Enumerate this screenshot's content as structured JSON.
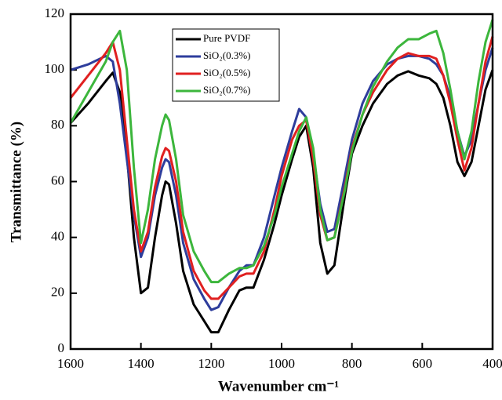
{
  "chart_data": {
    "type": "line",
    "xlabel": "Wavenumber cm⁻¹",
    "ylabel": "Transmittance (%)",
    "x": [
      1600,
      1550,
      1500,
      1480,
      1460,
      1440,
      1420,
      1400,
      1380,
      1360,
      1340,
      1330,
      1320,
      1300,
      1280,
      1250,
      1220,
      1200,
      1180,
      1150,
      1120,
      1100,
      1080,
      1050,
      1020,
      1000,
      970,
      950,
      930,
      910,
      890,
      870,
      850,
      820,
      800,
      770,
      740,
      700,
      670,
      640,
      610,
      580,
      560,
      540,
      520,
      500,
      480,
      460,
      440,
      420,
      400
    ],
    "series": [
      {
        "name": "Pure PVDF",
        "color": "#000000",
        "values": [
          81,
          88,
          96,
          99,
          92,
          70,
          40,
          20,
          22,
          40,
          55,
          60,
          59,
          45,
          28,
          16,
          10,
          6,
          6,
          14,
          21,
          22,
          22,
          32,
          45,
          55,
          68,
          76,
          80,
          65,
          38,
          27,
          30,
          55,
          70,
          80,
          88,
          95,
          98,
          99.5,
          98,
          97,
          95,
          90,
          80,
          67,
          62,
          67,
          80,
          93,
          100
        ]
      },
      {
        "name": "SiO₂(0.3%)",
        "color": "#2e3d9c",
        "values": [
          100,
          102,
          105,
          103,
          88,
          68,
          48,
          33,
          40,
          55,
          65,
          68,
          67,
          55,
          38,
          25,
          18,
          14,
          15,
          22,
          28,
          30,
          30,
          40,
          55,
          65,
          78,
          86,
          83,
          70,
          52,
          42,
          43,
          62,
          75,
          88,
          96,
          102,
          104,
          105,
          105,
          104,
          102,
          98,
          90,
          78,
          69,
          75,
          88,
          100,
          108
        ]
      },
      {
        "name": "SiO₂(0.5%)",
        "color": "#e02020",
        "values": [
          90,
          98,
          106,
          110,
          100,
          75,
          50,
          35,
          42,
          58,
          69,
          72,
          71,
          60,
          42,
          28,
          21,
          18,
          18,
          22,
          26,
          27,
          27,
          35,
          50,
          62,
          75,
          80,
          82,
          68,
          48,
          39,
          40,
          58,
          72,
          84,
          92,
          100,
          104,
          106,
          105,
          105,
          104,
          98,
          88,
          75,
          64,
          72,
          88,
          103,
          112
        ]
      },
      {
        "name": "SiO₂(0.7%)",
        "color": "#3cb63c",
        "values": [
          81,
          92,
          103,
          110,
          114,
          100,
          65,
          38,
          50,
          68,
          80,
          84,
          82,
          68,
          48,
          35,
          28,
          24,
          24,
          27,
          29,
          29,
          30,
          37,
          48,
          58,
          70,
          78,
          83,
          72,
          50,
          39,
          40,
          57,
          71,
          84,
          94,
          103,
          108,
          111,
          111,
          113,
          114,
          106,
          93,
          78,
          68,
          78,
          96,
          110,
          118
        ]
      }
    ],
    "xlim": [
      1600,
      400
    ],
    "xticks": [
      1600,
      1400,
      1200,
      1000,
      800,
      600,
      400
    ],
    "ylim": [
      0,
      120
    ],
    "yticks": [
      0,
      20,
      40,
      60,
      80,
      100,
      120
    ]
  }
}
